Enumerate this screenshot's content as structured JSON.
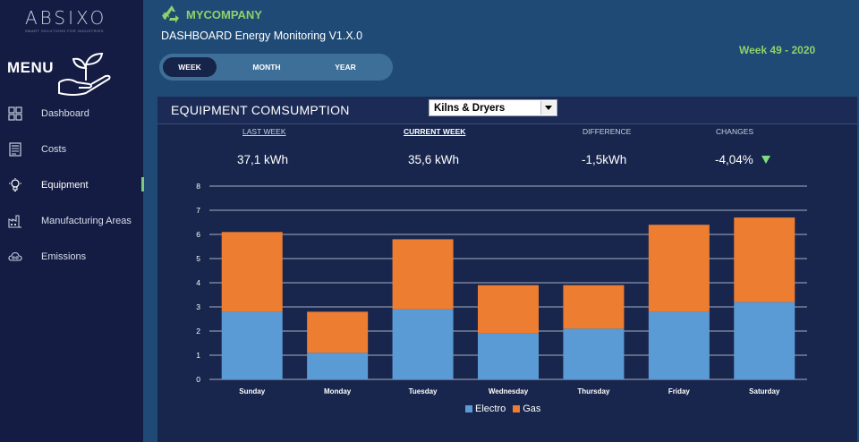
{
  "logo": {
    "name": "ABSIXO",
    "tagline": "SMART SOLUTIONS FOR INDUSTRIES"
  },
  "sidebar": {
    "menu_title": "MENU",
    "items": [
      {
        "label": "Dashboard",
        "icon": "dashboard-icon",
        "active": false
      },
      {
        "label": "Costs",
        "icon": "costs-icon",
        "active": false
      },
      {
        "label": "Equipment",
        "icon": "bulb-icon",
        "active": true
      },
      {
        "label": "Manufacturing Areas",
        "icon": "factory-icon",
        "active": false
      },
      {
        "label": "Emissions",
        "icon": "cloud-icon",
        "active": false
      }
    ]
  },
  "header": {
    "brand": "MYCOMPANY",
    "subtitle": "DASHBOARD Energy Monitoring V1.X.0",
    "week": "Week 49 - 2020"
  },
  "period_toggle": {
    "options": [
      "WEEK",
      "MONTH",
      "YEAR"
    ],
    "selected": "WEEK"
  },
  "panel": {
    "title": "EQUIPMENT COMSUMPTION",
    "dropdown_value": "Kilns & Dryers",
    "kpis": [
      {
        "label": "LAST WEEK",
        "value": "37,1 kWh"
      },
      {
        "label": "CURRENT WEEK",
        "value": "35,6 kWh"
      },
      {
        "label": "DIFFERENCE",
        "value": "-1,5kWh"
      },
      {
        "label": "CHANGES",
        "value": "-4,04%"
      }
    ]
  },
  "colors": {
    "electro": "#5b9bd5",
    "gas": "#ed7d31",
    "accent_green": "#8fd16a",
    "down_arrow": "#7fdc83"
  },
  "chart_data": {
    "type": "bar",
    "stacked": true,
    "categories": [
      "Sunday",
      "Monday",
      "Tuesday",
      "Wednesday",
      "Thursday",
      "Friday",
      "Saturday"
    ],
    "series": [
      {
        "name": "Electro",
        "values": [
          2.8,
          1.1,
          2.9,
          1.9,
          2.1,
          2.8,
          3.2
        ]
      },
      {
        "name": "Gas",
        "values": [
          3.3,
          1.7,
          2.9,
          2.0,
          1.8,
          3.6,
          3.5
        ]
      }
    ],
    "ylim": [
      0,
      8
    ],
    "yticks": [
      0,
      1,
      2,
      3,
      4,
      5,
      6,
      7,
      8
    ],
    "grid": true,
    "legend": "bottom"
  }
}
